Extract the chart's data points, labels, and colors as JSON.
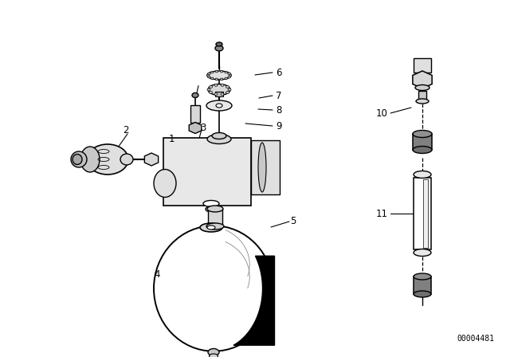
{
  "background_color": "#ffffff",
  "part_number_text": "00004481",
  "line_color": "#000000",
  "label_fontsize": 8.5,
  "part_number_fontsize": 7
}
